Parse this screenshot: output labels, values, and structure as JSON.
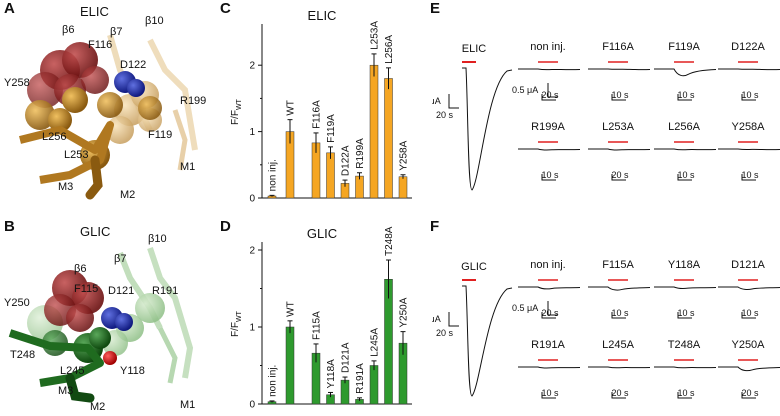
{
  "panels": {
    "A": "A",
    "B": "B",
    "C": "C",
    "D": "D",
    "E": "E",
    "F": "F"
  },
  "structures": {
    "elic": {
      "title": "ELIC",
      "labels": {
        "b6": "β6",
        "b7": "β7",
        "b10": "β10",
        "f116": "F116",
        "d122": "D122",
        "y258": "Y258",
        "r199": "R199",
        "l256": "L256",
        "f119": "F119",
        "l253": "L253",
        "m3": "M3",
        "m2": "M2",
        "m1": "M1"
      },
      "colors": {
        "dark": "#8a1a1a",
        "helix": "#b98a2e",
        "sphere": "#c98f2a",
        "light": "#e8c690",
        "blue": "#2a3ab0"
      }
    },
    "glic": {
      "title": "GLIC",
      "labels": {
        "b6": "β6",
        "b7": "β7",
        "b10": "β10",
        "y250": "Y250",
        "f115": "F115",
        "d121": "D121",
        "r191": "R191",
        "t248": "T248",
        "l245": "L245",
        "y118": "Y118",
        "m3": "M3",
        "m2": "M2",
        "m1": "M1"
      },
      "colors": {
        "dark": "#8a1a1a",
        "helix": "#2f7a2f",
        "sphere": "#1f6b1f",
        "light": "#a8cfa0",
        "blue": "#2a3ab0",
        "red": "#d02020"
      }
    }
  },
  "chart_data": [
    {
      "type": "bar",
      "panel": "C",
      "title": "ELIC",
      "ylabel": "F/F",
      "ylabel_sub": "WT",
      "ylim": [
        0,
        2.5
      ],
      "yticks": [
        "0",
        "1",
        "2"
      ],
      "color": "#f5a623",
      "categories": [
        "non inj.",
        "WT",
        "F116A",
        "F119A",
        "D122A",
        "R199A",
        "L253A",
        "L256A",
        "Y258A"
      ],
      "values": [
        0.03,
        1.0,
        0.83,
        0.68,
        0.22,
        0.33,
        2.0,
        1.8,
        0.32
      ],
      "errors": [
        0.01,
        0.18,
        0.15,
        0.09,
        0.05,
        0.05,
        0.17,
        0.16,
        0.03
      ]
    },
    {
      "type": "bar",
      "panel": "D",
      "title": "GLIC",
      "ylabel": "F/F",
      "ylabel_sub": "WT",
      "ylim": [
        0,
        2.0
      ],
      "yticks": [
        "0",
        "1",
        "2"
      ],
      "color": "#2e9a2e",
      "categories": [
        "non inj.",
        "WT",
        "F115A",
        "Y118A",
        "D121A",
        "R191A",
        "L245A",
        "T248A",
        "Y250A"
      ],
      "values": [
        0.03,
        1.0,
        0.66,
        0.12,
        0.31,
        0.06,
        0.5,
        1.62,
        0.79
      ],
      "errors": [
        0.01,
        0.08,
        0.12,
        0.03,
        0.04,
        0.02,
        0.06,
        0.25,
        0.15
      ]
    }
  ],
  "traces": {
    "E": {
      "big_label": "ELIC",
      "big_scale_y": "2 μA",
      "big_scale_x": "20 s",
      "small_scale_y": "0.5 μA",
      "items": [
        {
          "label": "non inj.",
          "time": "20 s",
          "dip": 0.05
        },
        {
          "label": "F116A",
          "time": "10 s",
          "dip": 0.02
        },
        {
          "label": "F119A",
          "time": "10 s",
          "dip": 0.55
        },
        {
          "label": "D122A",
          "time": "10 s",
          "dip": 0.02
        },
        {
          "label": "R199A",
          "time": "10 s",
          "dip": 0.08
        },
        {
          "label": "L253A",
          "time": "20 s",
          "dip": 0.08
        },
        {
          "label": "L256A",
          "time": "10 s",
          "dip": 0.06
        },
        {
          "label": "Y258A",
          "time": "10 s",
          "dip": 0.04
        }
      ]
    },
    "F": {
      "big_label": "GLIC",
      "big_scale_y": "2 μA",
      "big_scale_x": "20 s",
      "small_scale_y": "0.5 μA",
      "items": [
        {
          "label": "non inj.",
          "time": "20 s",
          "dip": 0.15
        },
        {
          "label": "F115A",
          "time": "10 s",
          "dip": 0.25
        },
        {
          "label": "Y118A",
          "time": "10 s",
          "dip": 0.12
        },
        {
          "label": "D121A",
          "time": "10 s",
          "dip": 0.2
        },
        {
          "label": "R191A",
          "time": "10 s",
          "dip": 0.08
        },
        {
          "label": "L245A",
          "time": "20 s",
          "dip": 0.06
        },
        {
          "label": "T248A",
          "time": "10 s",
          "dip": 0.06
        },
        {
          "label": "Y250A",
          "time": "20 s",
          "dip": 0.3
        }
      ]
    },
    "stim_color": "#e02020"
  }
}
